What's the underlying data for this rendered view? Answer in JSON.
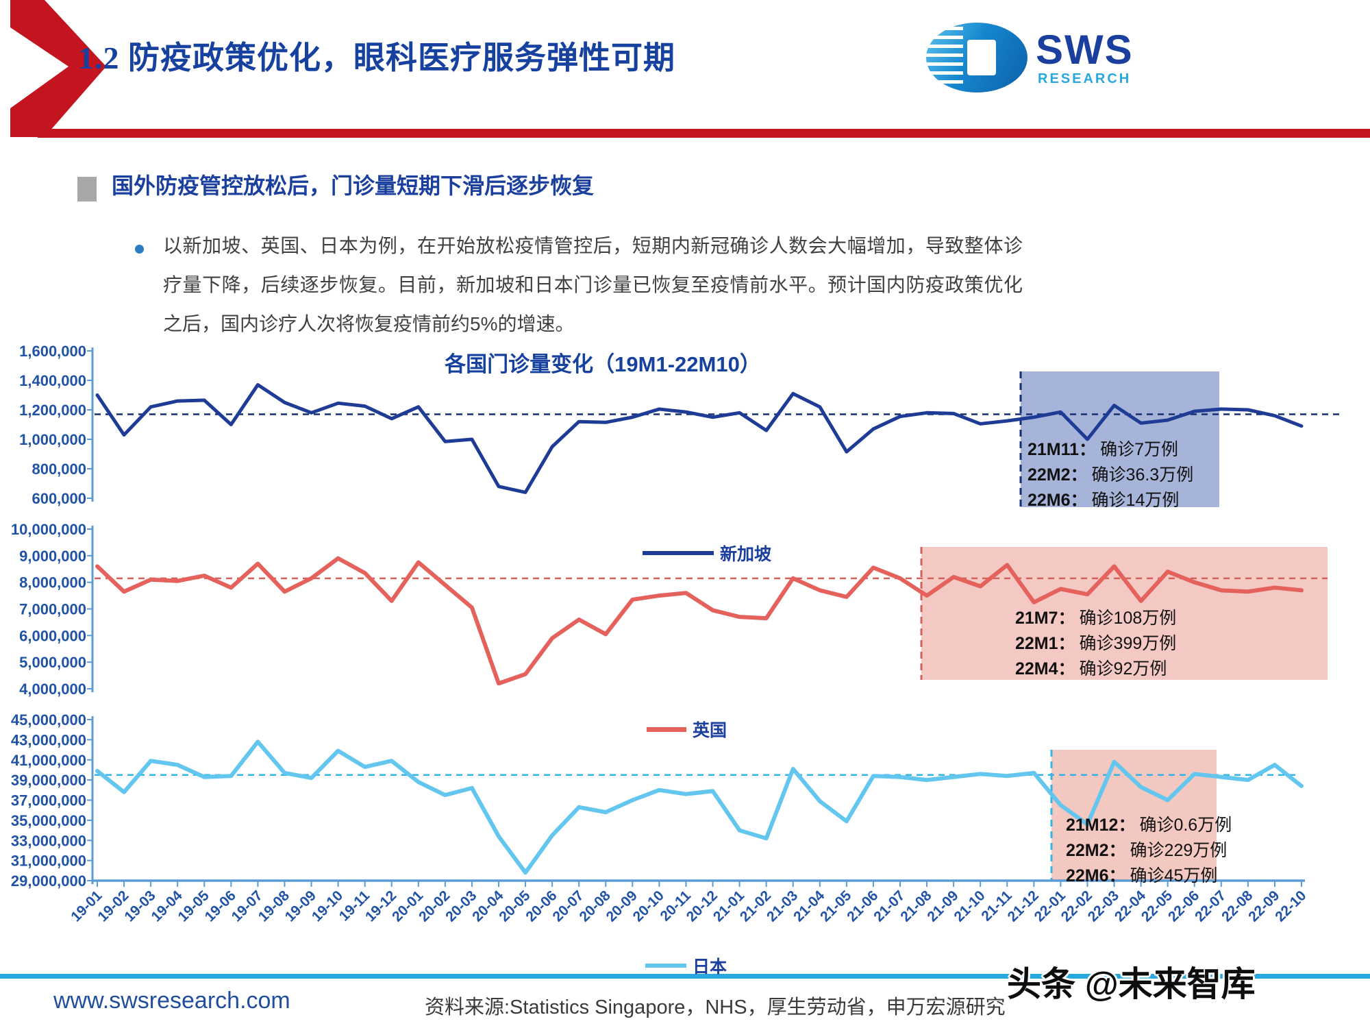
{
  "slide": {
    "title": "1.2 防疫政策优化，眼科医疗服务弹性可期",
    "section_header": "国外防疫管控放松后，门诊量短期下滑后逐步恢复",
    "body_text": "以新加坡、英国、日本为例，在开始放松疫情管控后，短期内新冠确诊人数会大幅增加，导致整体诊疗量下降，后续逐步恢复。目前，新加坡和日本门诊量已恢复至疫情前水平。预计国内防疫政策优化之后，国内诊疗人次将恢复疫情前约5%的增速。"
  },
  "logo": {
    "text": "SWS",
    "subtext": "RESEARCH"
  },
  "footer": {
    "url": "www.swsresearch.com",
    "source": "资料来源:Statistics Singapore，NHS，厚生劳动省，申万宏源研究",
    "watermark": "头条 @未来智库"
  },
  "chart_data": {
    "type": "line",
    "title": "各国门诊量变化（19M1-22M10）",
    "x_labels": [
      "19-01",
      "19-02",
      "19-03",
      "19-04",
      "19-05",
      "19-06",
      "19-07",
      "19-08",
      "19-09",
      "19-10",
      "19-11",
      "19-12",
      "20-01",
      "20-02",
      "20-03",
      "20-04",
      "20-05",
      "20-06",
      "20-07",
      "20-08",
      "20-09",
      "20-10",
      "20-11",
      "20-12",
      "21-01",
      "21-02",
      "21-03",
      "21-04",
      "21-05",
      "21-06",
      "21-07",
      "21-08",
      "21-09",
      "21-10",
      "21-11",
      "21-12",
      "22-01",
      "22-02",
      "22-03",
      "22-04",
      "22-05",
      "22-06",
      "22-07",
      "22-08",
      "22-09",
      "22-10"
    ],
    "panels": [
      {
        "series_name": "新加坡",
        "line_color": "#1e3c96",
        "ref_color": "#16306f",
        "ylim": [
          600000,
          1600000
        ],
        "yticks": [
          "1,600,000",
          "1,400,000",
          "1,200,000",
          "1,000,000",
          "800,000",
          "600,000"
        ],
        "ref_line_value": 1170000,
        "values": [
          1300000,
          1030000,
          1220000,
          1260000,
          1265000,
          1100000,
          1370000,
          1250000,
          1180000,
          1245000,
          1225000,
          1140000,
          1220000,
          985000,
          1000000,
          680000,
          640000,
          950000,
          1120000,
          1115000,
          1150000,
          1205000,
          1185000,
          1150000,
          1180000,
          1060000,
          1310000,
          1220000,
          915000,
          1070000,
          1155000,
          1180000,
          1175000,
          1105000,
          1125000,
          1150000,
          1185000,
          1000000,
          1230000,
          1110000,
          1130000,
          1190000,
          1205000,
          1200000,
          1160000,
          1090000
        ],
        "highlight": {
          "from_label": "21-11",
          "to_label": "22-06",
          "fill": "#a6b4d9",
          "annotations": [
            {
              "label": "21M11：",
              "text": "确诊7万例"
            },
            {
              "label": "22M2：",
              "text": "确诊36.3万例"
            },
            {
              "label": "22M6：",
              "text": "确诊14万例"
            }
          ]
        }
      },
      {
        "series_name": "英国",
        "line_color": "#e4615c",
        "ref_color": "#d2635a",
        "ylim": [
          4000000,
          10000000
        ],
        "yticks": [
          "10,000,000",
          "9,000,000",
          "8,000,000",
          "7,000,000",
          "6,000,000",
          "5,000,000",
          "4,000,000"
        ],
        "ref_line_value": 8150000,
        "values": [
          8600000,
          7650000,
          8100000,
          8050000,
          8250000,
          7800000,
          8700000,
          7650000,
          8150000,
          8900000,
          8350000,
          7300000,
          8750000,
          7900000,
          7050000,
          4200000,
          4550000,
          5900000,
          6600000,
          6050000,
          7350000,
          7500000,
          7600000,
          6950000,
          6700000,
          6650000,
          8150000,
          7700000,
          7450000,
          8550000,
          8150000,
          7500000,
          8200000,
          7850000,
          8650000,
          7250000,
          7750000,
          7550000,
          8600000,
          7300000,
          8400000,
          8000000,
          7700000,
          7650000,
          7800000,
          7700000
        ],
        "highlight": {
          "from_label": "21-07",
          "to_label": "22-10",
          "fill": "#f4c8c3",
          "annotations": [
            {
              "label": "21M7：",
              "text": "确诊108万例"
            },
            {
              "label": "22M1：",
              "text": "确诊399万例"
            },
            {
              "label": "22M4：",
              "text": "确诊92万例"
            }
          ]
        }
      },
      {
        "series_name": "日本",
        "line_color": "#62c6ef",
        "ref_color": "#35b3e4",
        "ylim": [
          29000000,
          45000000
        ],
        "yticks": [
          "45,000,000",
          "43,000,000",
          "41,000,000",
          "39,000,000",
          "37,000,000",
          "35,000,000",
          "33,000,000",
          "31,000,000",
          "29,000,000"
        ],
        "ref_line_value": 39500000,
        "values": [
          39900000,
          37800000,
          40900000,
          40500000,
          39300000,
          39400000,
          42800000,
          39700000,
          39200000,
          41900000,
          40300000,
          40900000,
          38800000,
          37500000,
          38200000,
          33400000,
          29800000,
          33500000,
          36300000,
          35800000,
          37000000,
          38000000,
          37600000,
          37900000,
          34000000,
          33200000,
          40100000,
          36900000,
          34900000,
          39400000,
          39300000,
          39000000,
          39300000,
          39600000,
          39400000,
          39700000,
          36500000,
          34600000,
          40800000,
          38300000,
          37000000,
          39600000,
          39300000,
          39000000,
          40500000,
          38400000
        ],
        "highlight": {
          "from_label": "21-12",
          "to_label": "22-06",
          "fill": "#f2c8c0",
          "annotations": [
            {
              "label": "21M12：",
              "text": "确诊0.6万例"
            },
            {
              "label": "22M2：",
              "text": "确诊229万例"
            },
            {
              "label": "22M6：",
              "text": "确诊45万例"
            }
          ]
        }
      }
    ]
  }
}
